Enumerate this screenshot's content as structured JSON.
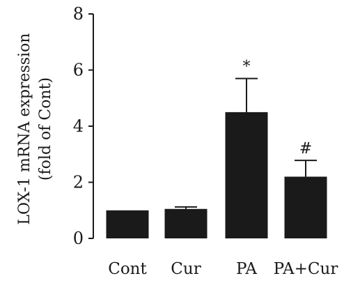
{
  "chart_data": {
    "type": "bar",
    "categories": [
      "Cont",
      "Cur",
      "PA",
      "PA+Cur"
    ],
    "values": [
      1.0,
      1.05,
      4.5,
      2.2
    ],
    "errors": [
      0.0,
      0.07,
      1.2,
      0.58
    ],
    "annotations": [
      "",
      "",
      "*",
      "#"
    ],
    "ylabel_line1": "LOX-1 mRNA expression",
    "ylabel_line2": "(fold of Cont)",
    "ylim": [
      0,
      8
    ],
    "yticks": [
      0,
      2,
      4,
      6,
      8
    ],
    "bar_color": "#1a1a1a",
    "grid": false,
    "legend": "none"
  }
}
